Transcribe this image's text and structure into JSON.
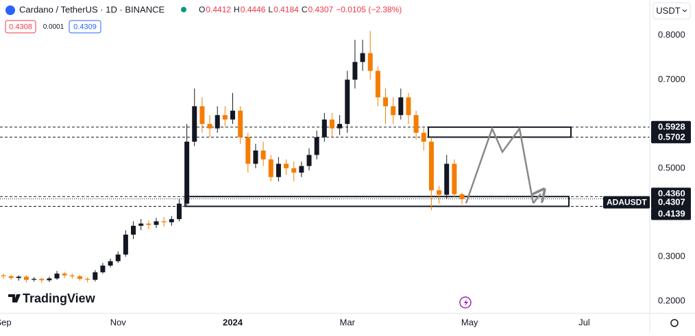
{
  "chart_data": {
    "type": "candlestick",
    "header": {
      "symbol": "Cardano / TetherUS · 1D · BINANCE",
      "ohlc": [
        {
          "key": "O",
          "value": 0.4412
        },
        {
          "key": "H",
          "value": 0.4446
        },
        {
          "key": "L",
          "value": 0.4184
        },
        {
          "key": "C",
          "value": 0.4307
        }
      ],
      "change": "−0.0105 (−2.38%)"
    },
    "bid": 0.4308,
    "spread": 0.0001,
    "ask": 0.4309,
    "currency": "USDT",
    "watermark": "TradingView",
    "categories": [
      "Sep",
      null,
      null,
      null,
      null,
      null,
      null,
      null,
      null,
      null,
      null,
      null,
      null,
      null,
      null,
      "Nov",
      null,
      null,
      null,
      null,
      null,
      null,
      null,
      null,
      null,
      null,
      null,
      null,
      null,
      null,
      "2024",
      null,
      null,
      null,
      null,
      null,
      null,
      null,
      null,
      null,
      null,
      null,
      null,
      null,
      null,
      "Mar",
      null,
      null,
      null,
      null,
      null,
      null,
      null,
      null,
      null,
      null,
      null,
      null,
      null,
      null,
      null,
      "May",
      null,
      null,
      null,
      null,
      null,
      null,
      null,
      null,
      null,
      null,
      null,
      null,
      null,
      null,
      "Jul",
      null,
      null,
      null,
      null,
      null,
      null,
      null,
      null
    ],
    "open": [
      0.258,
      0.256,
      0.252,
      0.255,
      0.248,
      0.25,
      0.247,
      0.251,
      0.262,
      0.258,
      0.256,
      0.25,
      0.248,
      0.265,
      0.28,
      0.29,
      0.305,
      0.35,
      0.37,
      0.375,
      0.372,
      0.38,
      0.378,
      0.385,
      0.42,
      0.56,
      0.64,
      0.6,
      0.59,
      0.62,
      0.61,
      0.63,
      0.57,
      0.51,
      0.54,
      0.52,
      0.48,
      0.51,
      0.5,
      0.49,
      0.505,
      0.53,
      0.57,
      0.61,
      0.59,
      0.6,
      0.7,
      0.74,
      0.76,
      0.72,
      0.66,
      0.64,
      0.62,
      0.66,
      0.62,
      0.58,
      0.56,
      0.45,
      0.44,
      0.51,
      0.4412,
      null,
      null,
      null,
      null,
      null,
      null,
      null,
      null,
      null,
      null,
      null,
      null,
      null,
      null,
      null,
      null,
      null,
      null,
      null,
      null,
      null,
      null,
      null,
      null
    ],
    "high": [
      0.262,
      0.26,
      0.258,
      0.258,
      0.254,
      0.253,
      0.255,
      0.268,
      0.266,
      0.262,
      0.259,
      0.254,
      0.27,
      0.286,
      0.296,
      0.312,
      0.36,
      0.38,
      0.385,
      0.382,
      0.388,
      0.39,
      0.392,
      0.43,
      0.6,
      0.68,
      0.66,
      0.62,
      0.64,
      0.64,
      0.67,
      0.64,
      0.58,
      0.555,
      0.56,
      0.53,
      0.525,
      0.52,
      0.515,
      0.515,
      0.545,
      0.585,
      0.625,
      0.625,
      0.62,
      0.72,
      0.79,
      0.79,
      0.81,
      0.73,
      0.68,
      0.66,
      0.68,
      0.67,
      0.63,
      0.59,
      0.57,
      0.46,
      0.53,
      0.52,
      0.4446,
      null,
      null,
      null,
      null,
      null,
      null,
      null,
      null,
      null,
      null,
      null,
      null,
      null,
      null,
      null,
      null,
      null,
      null,
      null,
      null,
      null,
      null,
      null,
      null
    ],
    "low": [
      0.25,
      0.248,
      0.246,
      0.242,
      0.244,
      0.241,
      0.243,
      0.248,
      0.252,
      0.25,
      0.246,
      0.242,
      0.244,
      0.262,
      0.276,
      0.286,
      0.3,
      0.34,
      0.36,
      0.362,
      0.365,
      0.368,
      0.37,
      0.38,
      0.415,
      0.55,
      0.58,
      0.57,
      0.58,
      0.595,
      0.6,
      0.555,
      0.49,
      0.5,
      0.505,
      0.47,
      0.47,
      0.485,
      0.47,
      0.48,
      0.495,
      0.52,
      0.56,
      0.57,
      0.575,
      0.58,
      0.68,
      0.72,
      0.7,
      0.64,
      0.6,
      0.6,
      0.61,
      0.6,
      0.565,
      0.54,
      0.405,
      0.42,
      0.43,
      0.435,
      0.4184,
      null,
      null,
      null,
      null,
      null,
      null,
      null,
      null,
      null,
      null,
      null,
      null,
      null,
      null,
      null,
      null,
      null,
      null,
      null,
      null,
      null,
      null,
      null,
      null
    ],
    "close": [
      0.256,
      0.252,
      0.255,
      0.248,
      0.25,
      0.247,
      0.251,
      0.262,
      0.258,
      0.256,
      0.25,
      0.248,
      0.265,
      0.28,
      0.29,
      0.305,
      0.35,
      0.37,
      0.375,
      0.372,
      0.38,
      0.378,
      0.385,
      0.42,
      0.56,
      0.64,
      0.6,
      0.59,
      0.62,
      0.61,
      0.63,
      0.57,
      0.51,
      0.54,
      0.52,
      0.48,
      0.51,
      0.5,
      0.49,
      0.505,
      0.53,
      0.57,
      0.61,
      0.59,
      0.6,
      0.7,
      0.74,
      0.76,
      0.72,
      0.66,
      0.64,
      0.62,
      0.66,
      0.62,
      0.58,
      0.56,
      0.45,
      0.44,
      0.51,
      0.4412,
      0.4307,
      null,
      null,
      null,
      null,
      null,
      null,
      null,
      null,
      null,
      null,
      null,
      null,
      null,
      null,
      null,
      null,
      null,
      null,
      null,
      null,
      null,
      null,
      null,
      null
    ],
    "up_color": "#131722",
    "down_color": "#f57c00",
    "ylim": [
      0.172,
      0.88
    ],
    "yticks": [
      {
        "value": 0.8,
        "label": "0.8000"
      },
      {
        "value": 0.7,
        "label": "0.7000"
      },
      {
        "value": 0.5,
        "label": "0.5000"
      },
      {
        "value": 0.3,
        "label": "0.3000"
      },
      {
        "value": 0.2,
        "label": "0.2000"
      }
    ],
    "levels": [
      0.5928,
      0.5702,
      {
        "value": 0.436,
        "label": "0.4360"
      },
      0.4139
    ],
    "current": {
      "symbol": "ADAUSDT",
      "value": 0.4307
    }
  }
}
